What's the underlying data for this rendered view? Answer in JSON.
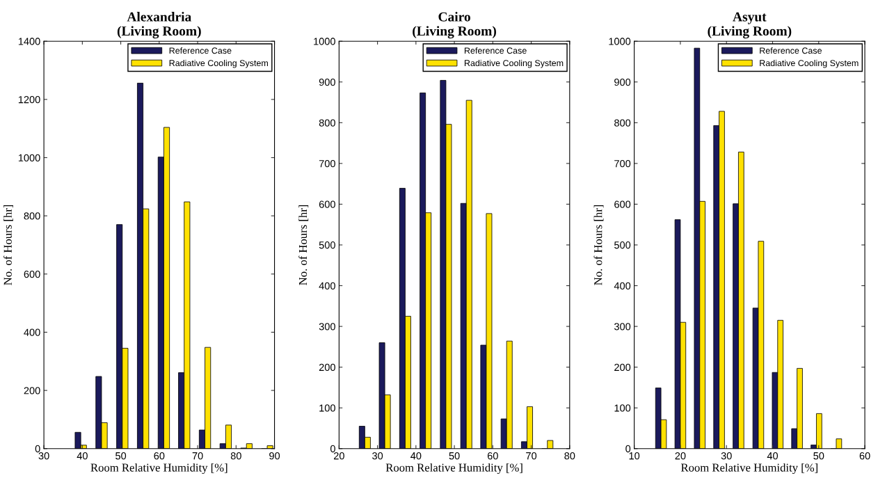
{
  "chart_data": [
    {
      "type": "bar",
      "title": "Alexandria\n(Living Room)",
      "xlabel": "Room Relative Humidity [%]",
      "ylabel": "No. of Hours [hr]",
      "x": [
        39.6,
        45.0,
        50.4,
        55.8,
        61.2,
        66.5,
        71.9,
        77.3,
        82.7,
        88.1
      ],
      "series": [
        {
          "name": "Reference Case",
          "color": "#1b1a5c",
          "values": [
            56,
            248,
            770,
            1256,
            1002,
            261,
            64,
            17,
            2,
            0
          ]
        },
        {
          "name": "Radiative Cooling System",
          "color": "#ffe100",
          "values": [
            12,
            89,
            345,
            824,
            1104,
            848,
            348,
            81,
            17,
            10
          ]
        }
      ],
      "xlim": [
        30,
        90
      ],
      "xticks": [
        30,
        40,
        50,
        60,
        70,
        80,
        90
      ],
      "ylim": [
        0,
        1400
      ],
      "yticks": [
        0,
        200,
        400,
        600,
        800,
        1000,
        1200,
        1400
      ],
      "legend": "top right",
      "grid": false
    },
    {
      "type": "bar",
      "title": "Cairo\n(Living Room)",
      "xlabel": "Room Relative Humidity [%]",
      "ylabel": "No. of Hours [hr]",
      "x": [
        26.7,
        31.9,
        37.2,
        42.5,
        47.8,
        53.1,
        58.3,
        63.6,
        68.9,
        74.2
      ],
      "series": [
        {
          "name": "Reference Case",
          "color": "#1b1a5c",
          "values": [
            55,
            260,
            639,
            873,
            904,
            602,
            254,
            73,
            17,
            0
          ]
        },
        {
          "name": "Radiative Cooling System",
          "color": "#ffe100",
          "values": [
            28,
            132,
            325,
            579,
            796,
            855,
            577,
            264,
            103,
            20
          ]
        }
      ],
      "xlim": [
        20,
        80
      ],
      "xticks": [
        20,
        30,
        40,
        50,
        60,
        70,
        80
      ],
      "ylim": [
        0,
        1000
      ],
      "yticks": [
        0,
        100,
        200,
        300,
        400,
        500,
        600,
        700,
        800,
        900,
        1000
      ],
      "legend": "top right",
      "grid": false
    },
    {
      "type": "bar",
      "title": "Asyut\n(Living Room)",
      "xlabel": "Room Relative Humidity [%]",
      "ylabel": "No. of Hours [hr]",
      "x": [
        15.8,
        20.0,
        24.2,
        28.4,
        32.6,
        36.9,
        41.1,
        45.3,
        49.5,
        53.8
      ],
      "series": [
        {
          "name": "Reference Case",
          "color": "#1b1a5c",
          "values": [
            149,
            562,
            983,
            793,
            601,
            345,
            187,
            49,
            9,
            0
          ]
        },
        {
          "name": "Radiative Cooling System",
          "color": "#ffe100",
          "values": [
            71,
            310,
            607,
            828,
            728,
            509,
            315,
            197,
            86,
            24
          ]
        }
      ],
      "xlim": [
        10,
        60
      ],
      "xticks": [
        10,
        20,
        30,
        40,
        50,
        60
      ],
      "ylim": [
        0,
        1000
      ],
      "yticks": [
        0,
        100,
        200,
        300,
        400,
        500,
        600,
        700,
        800,
        900,
        1000
      ],
      "legend": "top right",
      "grid": false
    }
  ]
}
